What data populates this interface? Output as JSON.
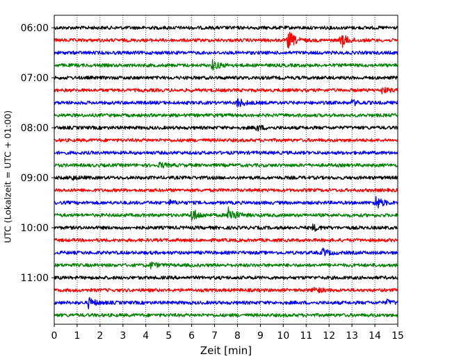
{
  "chart_data": {
    "type": "line",
    "title": "",
    "xlabel": "Zeit  [min]",
    "ylabel": "UTC (Lokalzeit = UTC + 01:00)",
    "xlim": [
      0,
      15
    ],
    "x_ticks": [
      0,
      1,
      2,
      3,
      4,
      5,
      6,
      7,
      8,
      9,
      10,
      11,
      12,
      13,
      14,
      15
    ],
    "x_tick_labels": [
      "0",
      "1",
      "2",
      "3",
      "4",
      "5",
      "6",
      "7",
      "8",
      "9",
      "10",
      "11",
      "12",
      "13",
      "14",
      "15"
    ],
    "y_ticks": [
      "06:00",
      "07:00",
      "08:00",
      "09:00",
      "10:00",
      "11:00"
    ],
    "grid": "vertical dotted",
    "trace_interval_min": 15,
    "colors_cycle": [
      "#000000",
      "#ff0000",
      "#0000ff",
      "#008000"
    ],
    "series": [
      {
        "start": "06:00",
        "color": "#000000",
        "events": []
      },
      {
        "start": "06:15",
        "color": "#ff0000",
        "events": [
          {
            "x": 10.2,
            "amp": 1.0
          },
          {
            "x": 12.5,
            "amp": 0.8
          }
        ]
      },
      {
        "start": "06:30",
        "color": "#0000ff",
        "events": []
      },
      {
        "start": "06:45",
        "color": "#008000",
        "events": [
          {
            "x": 6.9,
            "amp": 0.5
          }
        ]
      },
      {
        "start": "07:00",
        "color": "#000000",
        "events": []
      },
      {
        "start": "07:15",
        "color": "#ff0000",
        "events": [
          {
            "x": 14.3,
            "amp": 0.3
          }
        ]
      },
      {
        "start": "07:30",
        "color": "#0000ff",
        "events": [
          {
            "x": 8.0,
            "amp": 0.5
          },
          {
            "x": 13.0,
            "amp": 0.25
          }
        ]
      },
      {
        "start": "07:45",
        "color": "#008000",
        "events": []
      },
      {
        "start": "08:00",
        "color": "#000000",
        "events": [
          {
            "x": 8.8,
            "amp": 0.3
          }
        ]
      },
      {
        "start": "08:15",
        "color": "#ff0000",
        "events": []
      },
      {
        "start": "08:30",
        "color": "#0000ff",
        "events": []
      },
      {
        "start": "08:45",
        "color": "#008000",
        "events": [
          {
            "x": 4.6,
            "amp": 0.25
          }
        ]
      },
      {
        "start": "09:00",
        "color": "#000000",
        "events": [
          {
            "x": 0.7,
            "amp": 0.25
          }
        ]
      },
      {
        "start": "09:15",
        "color": "#ff0000",
        "events": []
      },
      {
        "start": "09:30",
        "color": "#0000ff",
        "events": [
          {
            "x": 14.0,
            "amp": 0.8
          },
          {
            "x": 5.0,
            "amp": 0.2
          }
        ]
      },
      {
        "start": "09:45",
        "color": "#008000",
        "events": [
          {
            "x": 6.0,
            "amp": 0.7
          },
          {
            "x": 7.6,
            "amp": 0.95
          }
        ]
      },
      {
        "start": "10:00",
        "color": "#000000",
        "events": [
          {
            "x": 11.3,
            "amp": 0.3
          }
        ]
      },
      {
        "start": "10:15",
        "color": "#ff0000",
        "events": []
      },
      {
        "start": "10:30",
        "color": "#0000ff",
        "events": [
          {
            "x": 11.7,
            "amp": 0.4
          }
        ]
      },
      {
        "start": "10:45",
        "color": "#008000",
        "events": [
          {
            "x": 4.2,
            "amp": 0.3
          }
        ]
      },
      {
        "start": "11:00",
        "color": "#000000",
        "events": []
      },
      {
        "start": "11:15",
        "color": "#ff0000",
        "events": [
          {
            "x": 11.3,
            "amp": 0.35
          }
        ]
      },
      {
        "start": "11:30",
        "color": "#0000ff",
        "events": [
          {
            "x": 1.5,
            "amp": 0.5
          },
          {
            "x": 14.5,
            "amp": 0.25
          }
        ]
      },
      {
        "start": "11:45",
        "color": "#008000",
        "events": []
      }
    ]
  }
}
